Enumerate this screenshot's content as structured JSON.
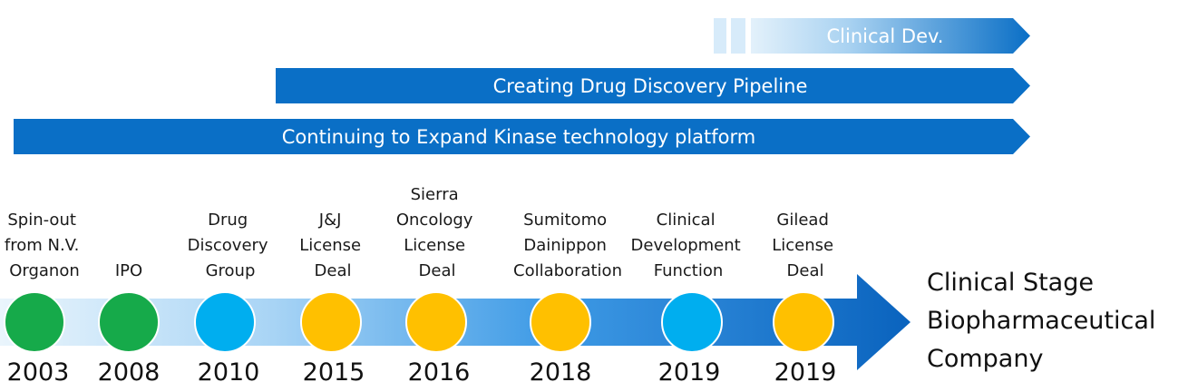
{
  "colors": {
    "bar": "#0a6fc6",
    "green": "#16aa4a",
    "cyan": "#00aeef",
    "amber": "#ffc000",
    "arrow_light": "#dff0fb",
    "arrow_dark": "#0a66c2"
  },
  "bars": [
    {
      "label": "Clinical Dev.",
      "style": "fade"
    },
    {
      "label": "Creating Drug Discovery Pipeline",
      "style": "solid"
    },
    {
      "label": "Continuing to Expand Kinase technology platform",
      "style": "solid"
    }
  ],
  "events": [
    {
      "lines": [
        "Spin-out",
        "from N.V.",
        "Organon"
      ],
      "year": "2003",
      "color": "green"
    },
    {
      "lines": [
        "IPO"
      ],
      "year": "2008",
      "color": "green"
    },
    {
      "lines": [
        "Drug",
        "Discovery",
        "Group"
      ],
      "year": "2010",
      "color": "cyan"
    },
    {
      "lines": [
        "J&J",
        "License",
        "Deal"
      ],
      "year": "2015",
      "color": "amber"
    },
    {
      "lines": [
        "Sierra",
        "Oncology",
        "License",
        "Deal"
      ],
      "year": "2016",
      "color": "amber"
    },
    {
      "lines": [
        "Sumitomo",
        "Dainippon",
        "Collaboration"
      ],
      "year": "2018",
      "color": "amber"
    },
    {
      "lines": [
        "Clinical",
        "Development",
        "Function"
      ],
      "year": "2019",
      "color": "cyan"
    },
    {
      "lines": [
        "Gilead",
        "License",
        "Deal"
      ],
      "year": "2019",
      "color": "amber"
    }
  ],
  "outcome": {
    "lines": [
      "Clinical Stage",
      "Biopharmaceutical",
      "Company"
    ]
  }
}
